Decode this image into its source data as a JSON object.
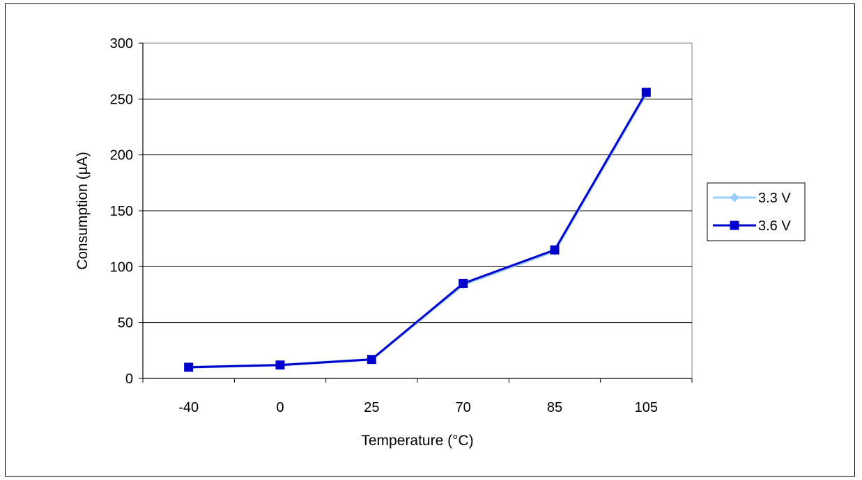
{
  "chart_data": {
    "type": "line",
    "categories": [
      "-40",
      "0",
      "25",
      "70",
      "85",
      "105"
    ],
    "series": [
      {
        "name": "3.3 V",
        "values": [
          10,
          12,
          17,
          84,
          114,
          255
        ],
        "color": "#99ccff",
        "marker": "diamond"
      },
      {
        "name": "3.6 V",
        "values": [
          10,
          12,
          17,
          85,
          115,
          256
        ],
        "color": "#0000cc",
        "marker": "square"
      }
    ],
    "xlabel": "Temperature (°C)",
    "ylabel": "Consumption (µA)",
    "ylim": [
      0,
      300
    ],
    "yticks": [
      "0",
      "50",
      "100",
      "150",
      "200",
      "250",
      "300"
    ],
    "grid": true,
    "legend_position": "right"
  }
}
